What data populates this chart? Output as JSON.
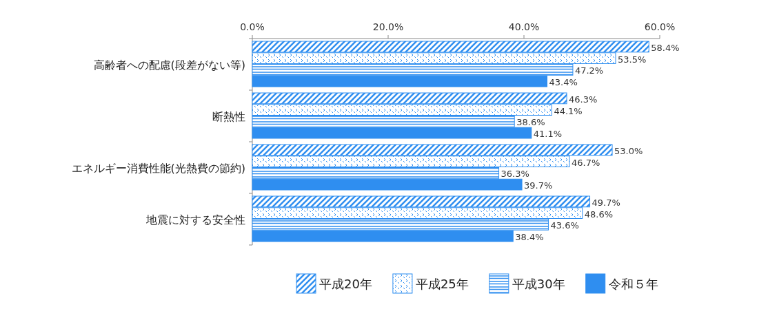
{
  "chart_data": {
    "type": "bar",
    "orientation": "horizontal",
    "categories": [
      "高齢者への配慮(段差がない等)",
      "断熱性",
      "エネルギー消費性能(光熱費の節約)",
      "地震に対する安全性"
    ],
    "series": [
      {
        "name": "平成20年",
        "color": "#2f8ef0",
        "values": [
          58.4,
          46.3,
          53.0,
          49.7
        ],
        "value_labels": [
          "58.4%",
          "46.3%",
          "53.0%",
          "49.7%"
        ]
      },
      {
        "name": "平成25年",
        "color": "#2f8ef0",
        "values": [
          53.5,
          44.1,
          46.7,
          48.6
        ],
        "value_labels": [
          "53.5%",
          "44.1%",
          "46.7%",
          "48.6%"
        ]
      },
      {
        "name": "平成30年",
        "color": "#2f8ef0",
        "values": [
          47.2,
          38.6,
          36.3,
          43.6
        ],
        "value_labels": [
          "47.2%",
          "38.6%",
          "36.3%",
          "43.6%"
        ]
      },
      {
        "name": "令和５年",
        "color": "#2f8ef0",
        "values": [
          43.4,
          41.1,
          39.7,
          38.4
        ],
        "value_labels": [
          "43.4%",
          "41.1%",
          "39.7%",
          "38.4%"
        ]
      }
    ],
    "xlim": [
      0,
      60
    ],
    "xticks": [
      {
        "value": 0,
        "label": "0.0%"
      },
      {
        "value": 20,
        "label": "20.0%"
      },
      {
        "value": 40,
        "label": "40.0%"
      },
      {
        "value": 60,
        "label": "60.0%"
      }
    ],
    "legend": "bottom"
  }
}
